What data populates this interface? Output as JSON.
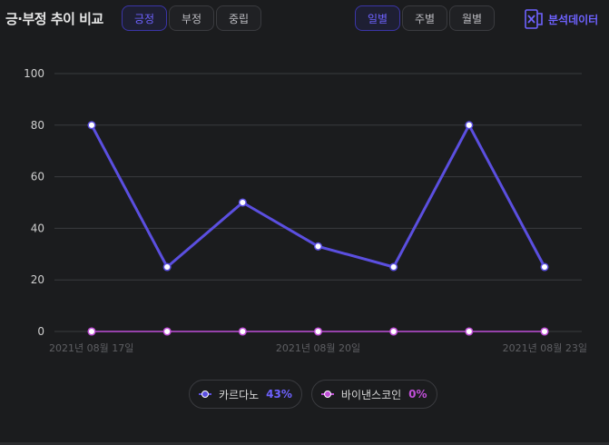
{
  "title": "긍·부정 추이 비교",
  "sentiment_tabs": [
    {
      "label": "긍정",
      "active": true
    },
    {
      "label": "부정",
      "active": false
    },
    {
      "label": "중립",
      "active": false
    }
  ],
  "period_tabs": [
    {
      "label": "일별",
      "active": true
    },
    {
      "label": "주별",
      "active": false
    },
    {
      "label": "월별",
      "active": false
    }
  ],
  "export_label": "분석데이터",
  "export_icon": "excel-icon",
  "colors": {
    "accent": "#6e62ff",
    "series1": "#5b4fe0",
    "series2": "#c04fd8",
    "grid": "#3a3b3f",
    "tick": "#cfcfcf",
    "xtick": "#5e5f63"
  },
  "chart_data": {
    "type": "line",
    "x": [
      "2021년 08월 17일",
      "2021년 08월 18일",
      "2021년 08월 19일",
      "2021년 08월 20일",
      "2021년 08월 21일",
      "2021년 08월 22일",
      "2021년 08월 23일"
    ],
    "x_tick_labels": [
      "2021년 08월 17일",
      "2021년 08월 20일",
      "2021년 08월 23일"
    ],
    "x_tick_indices": [
      0,
      3,
      6
    ],
    "series": [
      {
        "name": "카르다노",
        "pct": "43%",
        "values": [
          80,
          25,
          50,
          33,
          25,
          80,
          25
        ],
        "color": "#5b4fe0"
      },
      {
        "name": "바이낸스코인",
        "pct": "0%",
        "values": [
          0,
          0,
          0,
          0,
          0,
          0,
          0
        ],
        "color": "#c04fd8"
      }
    ],
    "ylim": [
      0,
      100
    ],
    "yticks": [
      0,
      20,
      40,
      60,
      80,
      100
    ],
    "grid": true,
    "legend_placement": "bottom-center"
  }
}
